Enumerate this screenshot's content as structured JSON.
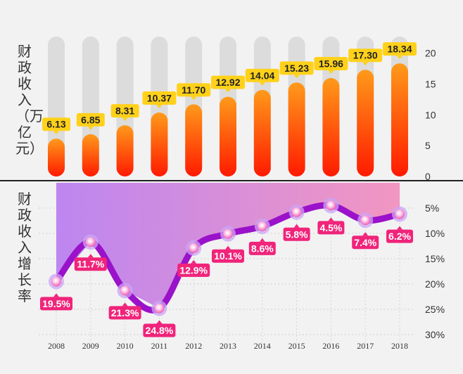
{
  "chart_data": [
    {
      "type": "bar",
      "ylabel": "财政收入（万亿元）",
      "categories": [
        "2008",
        "2009",
        "2010",
        "2011",
        "2012",
        "2013",
        "2014",
        "2015",
        "2016",
        "2017",
        "2018"
      ],
      "values": [
        6.13,
        6.85,
        8.31,
        10.37,
        11.7,
        12.92,
        14.04,
        15.23,
        15.96,
        17.3,
        18.34
      ],
      "value_labels": [
        "6.13",
        "6.85",
        "8.31",
        "10.37",
        "11.70",
        "12.92",
        "14.04",
        "15.23",
        "15.96",
        "17.30",
        "18.34"
      ],
      "ylim": [
        0,
        22
      ],
      "yticks": [
        0,
        5,
        10,
        15,
        20
      ],
      "ytick_labels": [
        "0",
        "5",
        "10",
        "15",
        "20"
      ],
      "colors": {
        "bar_top": "#ff9a1a",
        "bar_bottom": "#ff1a00",
        "track": "#dcdcdc",
        "label_bg": "#ffd11a"
      }
    },
    {
      "type": "line",
      "ylabel": "财政收入增长率",
      "y_inverted": true,
      "categories": [
        "2008",
        "2009",
        "2010",
        "2011",
        "2012",
        "2013",
        "2014",
        "2015",
        "2016",
        "2017",
        "2018"
      ],
      "values": [
        19.5,
        11.7,
        21.3,
        24.8,
        12.9,
        10.1,
        8.6,
        5.8,
        4.5,
        7.4,
        6.2
      ],
      "value_labels": [
        "19.5%",
        "11.7%",
        "21.3%",
        "24.8%",
        "12.9%",
        "10.1%",
        "8.6%",
        "5.8%",
        "4.5%",
        "7.4%",
        "6.2%"
      ],
      "ylim": [
        0,
        32
      ],
      "yticks": [
        5,
        10,
        15,
        20,
        25,
        30
      ],
      "ytick_labels": [
        "5%",
        "10%",
        "15%",
        "20%",
        "25%",
        "30%"
      ],
      "colors": {
        "line": "#9a12c9",
        "label_bg": "#f0247a",
        "area_left": "#b77af0",
        "area_right": "#f28cbc"
      }
    }
  ]
}
